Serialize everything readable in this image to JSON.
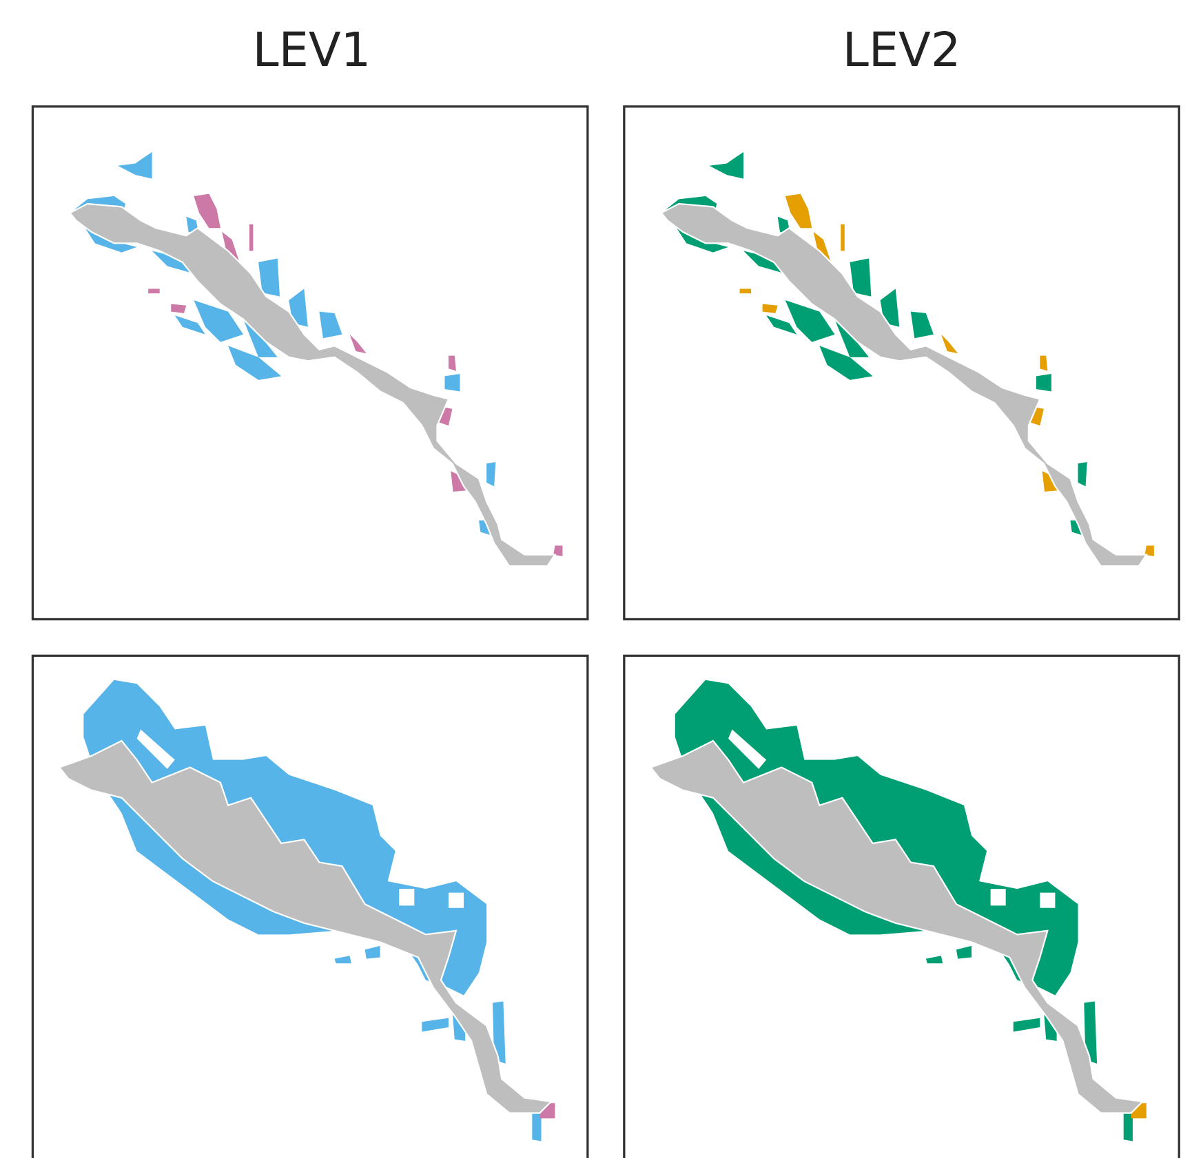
{
  "panels": {
    "titles": [
      "LEV1",
      "LEV2"
    ]
  }
}
